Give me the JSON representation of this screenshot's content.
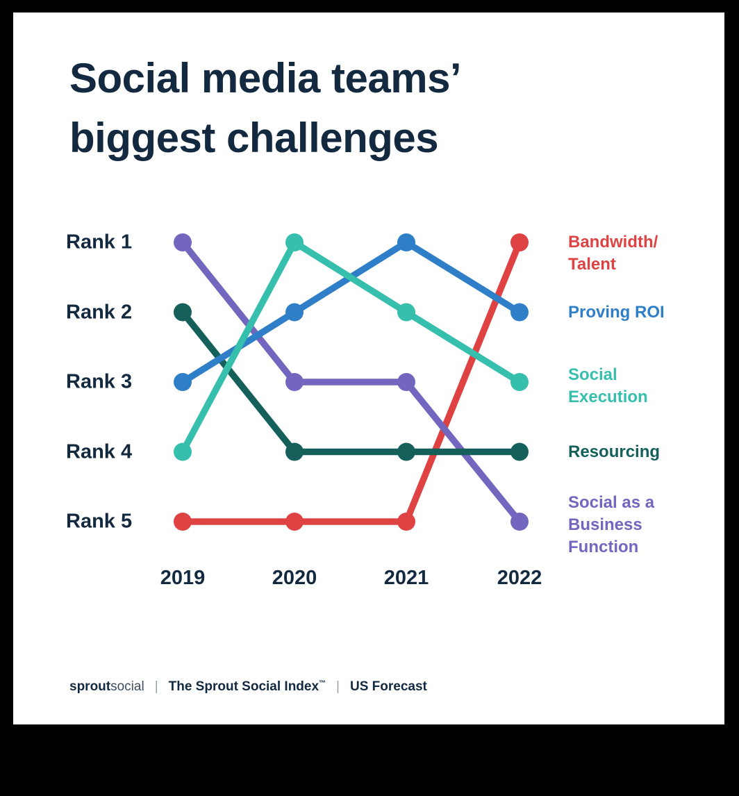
{
  "title": {
    "line1": "Social media teams’",
    "line2": "biggest challenges"
  },
  "colors": {
    "background": "#000000",
    "panel": "#FFFFFF",
    "text_navy": "#13293F",
    "separator_gray": "#97A2AD"
  },
  "chart_data": {
    "type": "line",
    "variant": "rank-bump",
    "title": "Social media teams’ biggest challenges",
    "x_labels": [
      "2019",
      "2020",
      "2021",
      "2022"
    ],
    "y_labels": [
      "Rank 1",
      "Rank 2",
      "Rank 3",
      "Rank 4",
      "Rank 5"
    ],
    "y_axis_note": "rank 1 = top (axis inverted, 1 at top, 5 at bottom)",
    "grid": false,
    "legend_position": "right",
    "series": [
      {
        "name": "Bandwidth/Talent",
        "legend_lines": [
          "Bandwidth/",
          "Talent"
        ],
        "color": "#DE4242",
        "ranks": [
          5,
          5,
          5,
          1
        ]
      },
      {
        "name": "Proving ROI",
        "legend_lines": [
          "Proving ROI"
        ],
        "color": "#2E7FC7",
        "ranks": [
          3,
          2,
          1,
          2
        ]
      },
      {
        "name": "Social Execution",
        "legend_lines": [
          "Social",
          "Execution"
        ],
        "color": "#36BFAC",
        "ranks": [
          4,
          1,
          2,
          3
        ]
      },
      {
        "name": "Resourcing",
        "legend_lines": [
          "Resourcing"
        ],
        "color": "#15605A",
        "ranks": [
          2,
          4,
          4,
          4
        ]
      },
      {
        "name": "Social as a Business Function",
        "legend_lines": [
          "Social as a",
          "Business",
          "Function"
        ],
        "color": "#7266BE",
        "ranks": [
          1,
          3,
          3,
          5
        ]
      }
    ],
    "draw_order_bottom_to_top": [
      0,
      4,
      3,
      1,
      2
    ]
  },
  "footer": {
    "logo_bold": "sprout",
    "logo_light": "social",
    "separator": "|",
    "index_label": "The Sprout Social Index",
    "index_tm": "™",
    "forecast_label": "US Forecast"
  }
}
